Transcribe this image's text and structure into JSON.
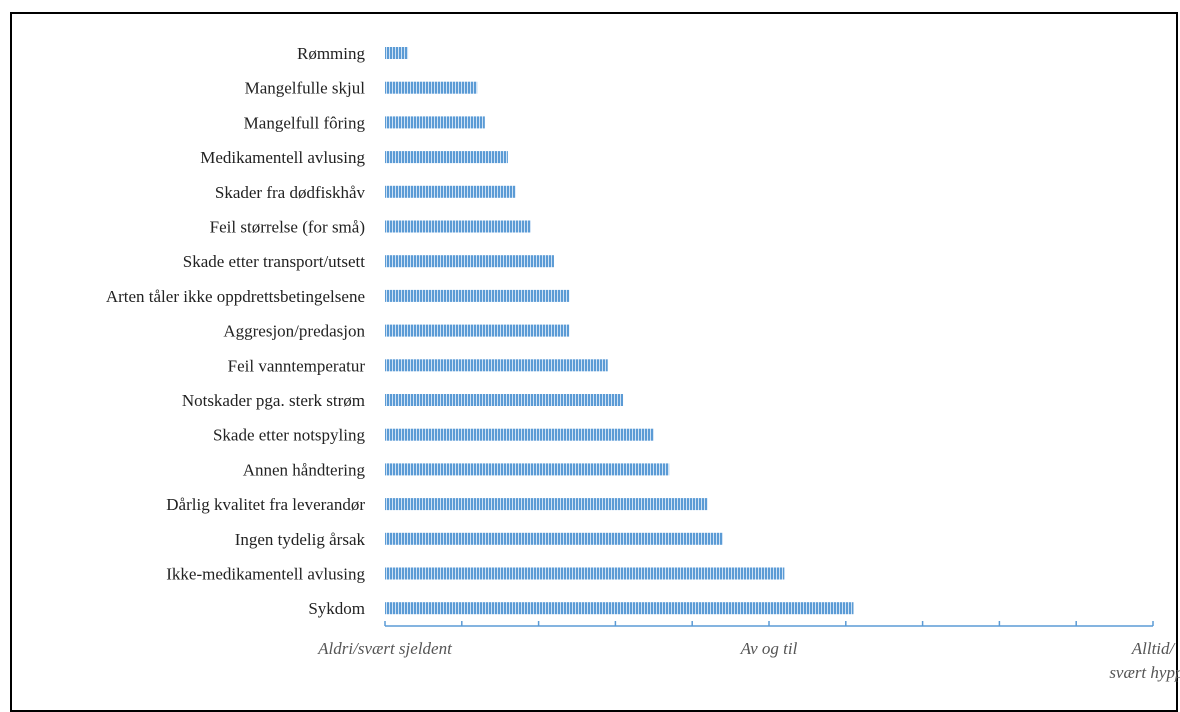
{
  "chart_data": {
    "type": "bar",
    "orientation": "horizontal",
    "categories": [
      "Rømming",
      "Mangelfulle skjul",
      "Mangelfull fôring",
      "Medikamentell avlusing",
      "Skader fra dødfiskhåv",
      "Feil størrelse (for små)",
      "Skade etter transport/utsett",
      "Arten tåler ikke oppdrettsbetingelsene",
      "Aggresjon/predasjon",
      "Feil vanntemperatur",
      "Notskader pga. sterk strøm",
      "Skade etter notspyling",
      "Annen håndtering",
      "Dårlig kvalitet fra leverandør",
      "Ingen tydelig årsak",
      "Ikke-medikamentell avlusing",
      "Sykdom"
    ],
    "values": [
      0.3,
      1.2,
      1.3,
      1.6,
      1.7,
      1.9,
      2.2,
      2.4,
      2.4,
      2.9,
      3.1,
      3.5,
      3.7,
      4.2,
      4.4,
      5.2,
      6.1
    ],
    "xlim": [
      0,
      10
    ],
    "x_tick_labels": [
      {
        "value": 0,
        "lines": [
          "Aldri/svært sjeldent"
        ]
      },
      {
        "value": 5,
        "lines": [
          "Av og til"
        ]
      },
      {
        "value": 10,
        "lines": [
          "Alltid/",
          "svært hyppig"
        ]
      }
    ],
    "bar_color": "#5b9bd5",
    "grid": false,
    "legend": "none"
  }
}
